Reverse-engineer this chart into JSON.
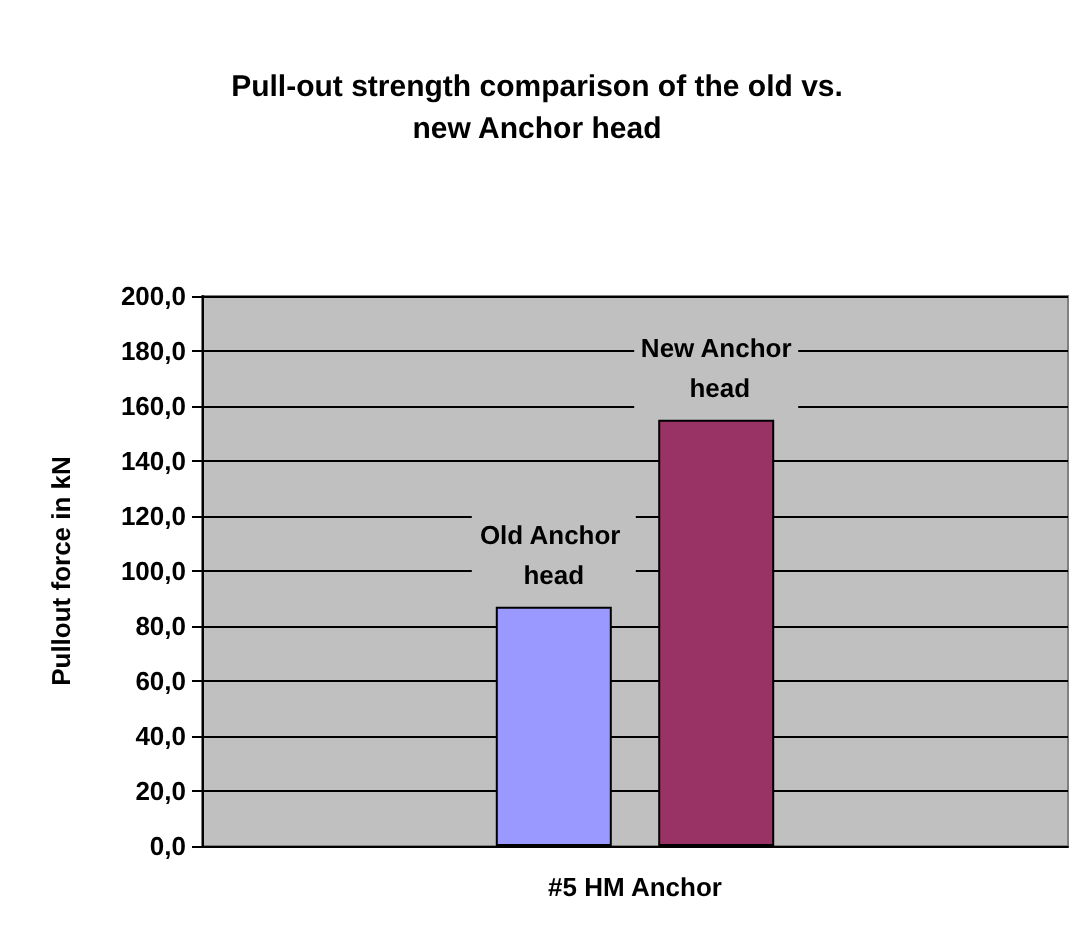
{
  "chart_data": {
    "type": "bar",
    "title": "Pull-out strength comparison of the old vs.\nnew Anchor head",
    "ylabel": "Pullout force in kN",
    "categories": [
      "#5 HM Anchor"
    ],
    "series": [
      {
        "name": "Old Anchor head",
        "color": "#9999ff",
        "values": [
          87
        ]
      },
      {
        "name": "New Anchor head",
        "color": "#993366",
        "values": [
          155
        ]
      }
    ],
    "ylim": [
      0,
      200
    ],
    "yticks": [
      {
        "value": 0,
        "label": "0,0"
      },
      {
        "value": 20,
        "label": "20,0"
      },
      {
        "value": 40,
        "label": "40,0"
      },
      {
        "value": 60,
        "label": "60,0"
      },
      {
        "value": 80,
        "label": "80,0"
      },
      {
        "value": 100,
        "label": "100,0"
      },
      {
        "value": 120,
        "label": "120,0"
      },
      {
        "value": 140,
        "label": "140,0"
      },
      {
        "value": 160,
        "label": "160,0"
      },
      {
        "value": 180,
        "label": "180,0"
      },
      {
        "value": 200,
        "label": "200,0"
      }
    ],
    "grid": "y",
    "legend": false
  }
}
